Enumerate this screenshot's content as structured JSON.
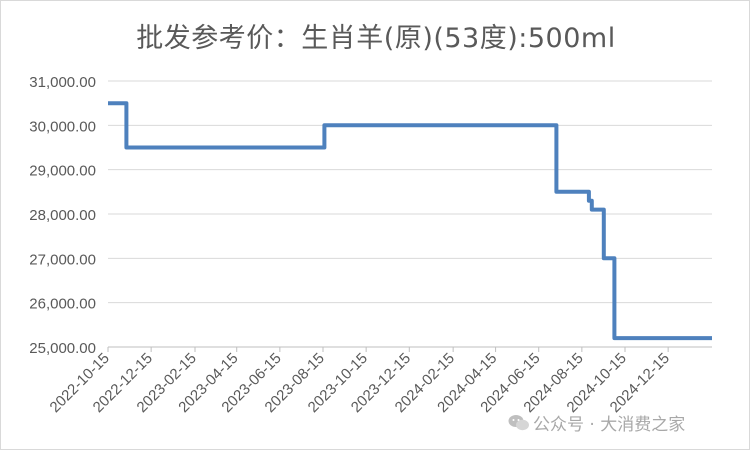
{
  "chart_data": {
    "type": "line",
    "title": "批发参考价：生肖羊(原)(53度):500ml",
    "xlabel": "",
    "ylabel": "",
    "ylim": [
      25000,
      31000
    ],
    "yticks": [
      25000,
      26000,
      27000,
      28000,
      29000,
      30000,
      31000
    ],
    "ytick_labels": [
      "25,000.00",
      "26,000.00",
      "27,000.00",
      "28,000.00",
      "29,000.00",
      "30,000.00",
      "31,000.00"
    ],
    "xlim": [
      "2022-10-15",
      "2025-02-15"
    ],
    "xtick_labels": [
      "2022-10-15",
      "2022-12-15",
      "2023-02-15",
      "2023-04-15",
      "2023-06-15",
      "2023-08-15",
      "2023-10-15",
      "2023-12-15",
      "2024-02-15",
      "2024-04-15",
      "2024-06-15",
      "2024-08-15",
      "2024-10-15",
      "2024-12-15"
    ],
    "grid": "horizontal",
    "line_style": "step",
    "color": "#4e81bd",
    "series": [
      {
        "name": "",
        "points": [
          [
            "2022-10-15",
            30500
          ],
          [
            "2022-11-10",
            30500
          ],
          [
            "2022-11-10",
            29500
          ],
          [
            "2023-08-17",
            29500
          ],
          [
            "2023-08-17",
            30000
          ],
          [
            "2024-07-10",
            30000
          ],
          [
            "2024-07-10",
            28500
          ],
          [
            "2024-08-25",
            28500
          ],
          [
            "2024-08-25",
            28300
          ],
          [
            "2024-08-29",
            28300
          ],
          [
            "2024-08-29",
            28100
          ],
          [
            "2024-09-15",
            28100
          ],
          [
            "2024-09-15",
            27000
          ],
          [
            "2024-09-30",
            27000
          ],
          [
            "2024-09-30",
            25200
          ],
          [
            "2025-02-15",
            25200
          ]
        ]
      }
    ]
  },
  "watermark": {
    "text": "公众号 · 大消费之家"
  }
}
